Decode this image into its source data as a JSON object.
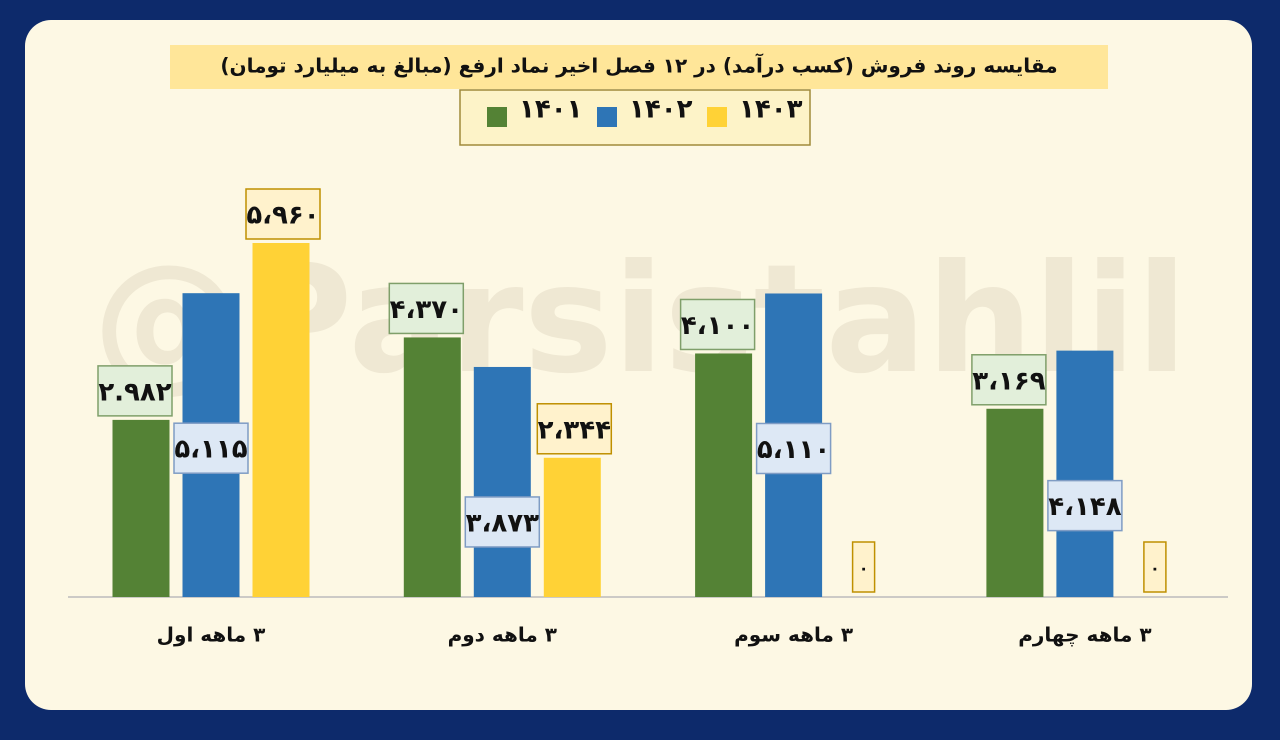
{
  "chart_data": {
    "type": "bar",
    "title": "مقایسه روند فروش (کسب درآمد) در ۱۲ فصل اخیر نماد ارفع (مبالغ به میلیارد تومان)",
    "watermark": "@Parsistahlil",
    "categories": [
      "۳ ماهه اول",
      "۳ ماهه دوم",
      "۳ ماهه سوم",
      "۳ ماهه چهارم"
    ],
    "series": [
      {
        "name": "۱۴۰۱",
        "color": "#548235",
        "values": [
          2982,
          4370,
          4100,
          3169
        ],
        "value_labels": [
          "۲.۹۸۲",
          "۴،۳۷۰",
          "۴،۱۰۰",
          "۳،۱۶۹"
        ]
      },
      {
        "name": "۱۴۰۲",
        "color": "#2e75b6",
        "values": [
          5115,
          3873,
          5110,
          4148
        ],
        "value_labels": [
          "۵،۱۱۵",
          "۳،۸۷۳",
          "۵،۱۱۰",
          "۴،۱۴۸"
        ]
      },
      {
        "name": "۱۴۰۳",
        "color": "#ffd236",
        "values": [
          5960,
          2344,
          0,
          0
        ],
        "value_labels": [
          "۵،۹۶۰",
          "۲،۳۴۴",
          "۰",
          "۰"
        ]
      }
    ]
  }
}
